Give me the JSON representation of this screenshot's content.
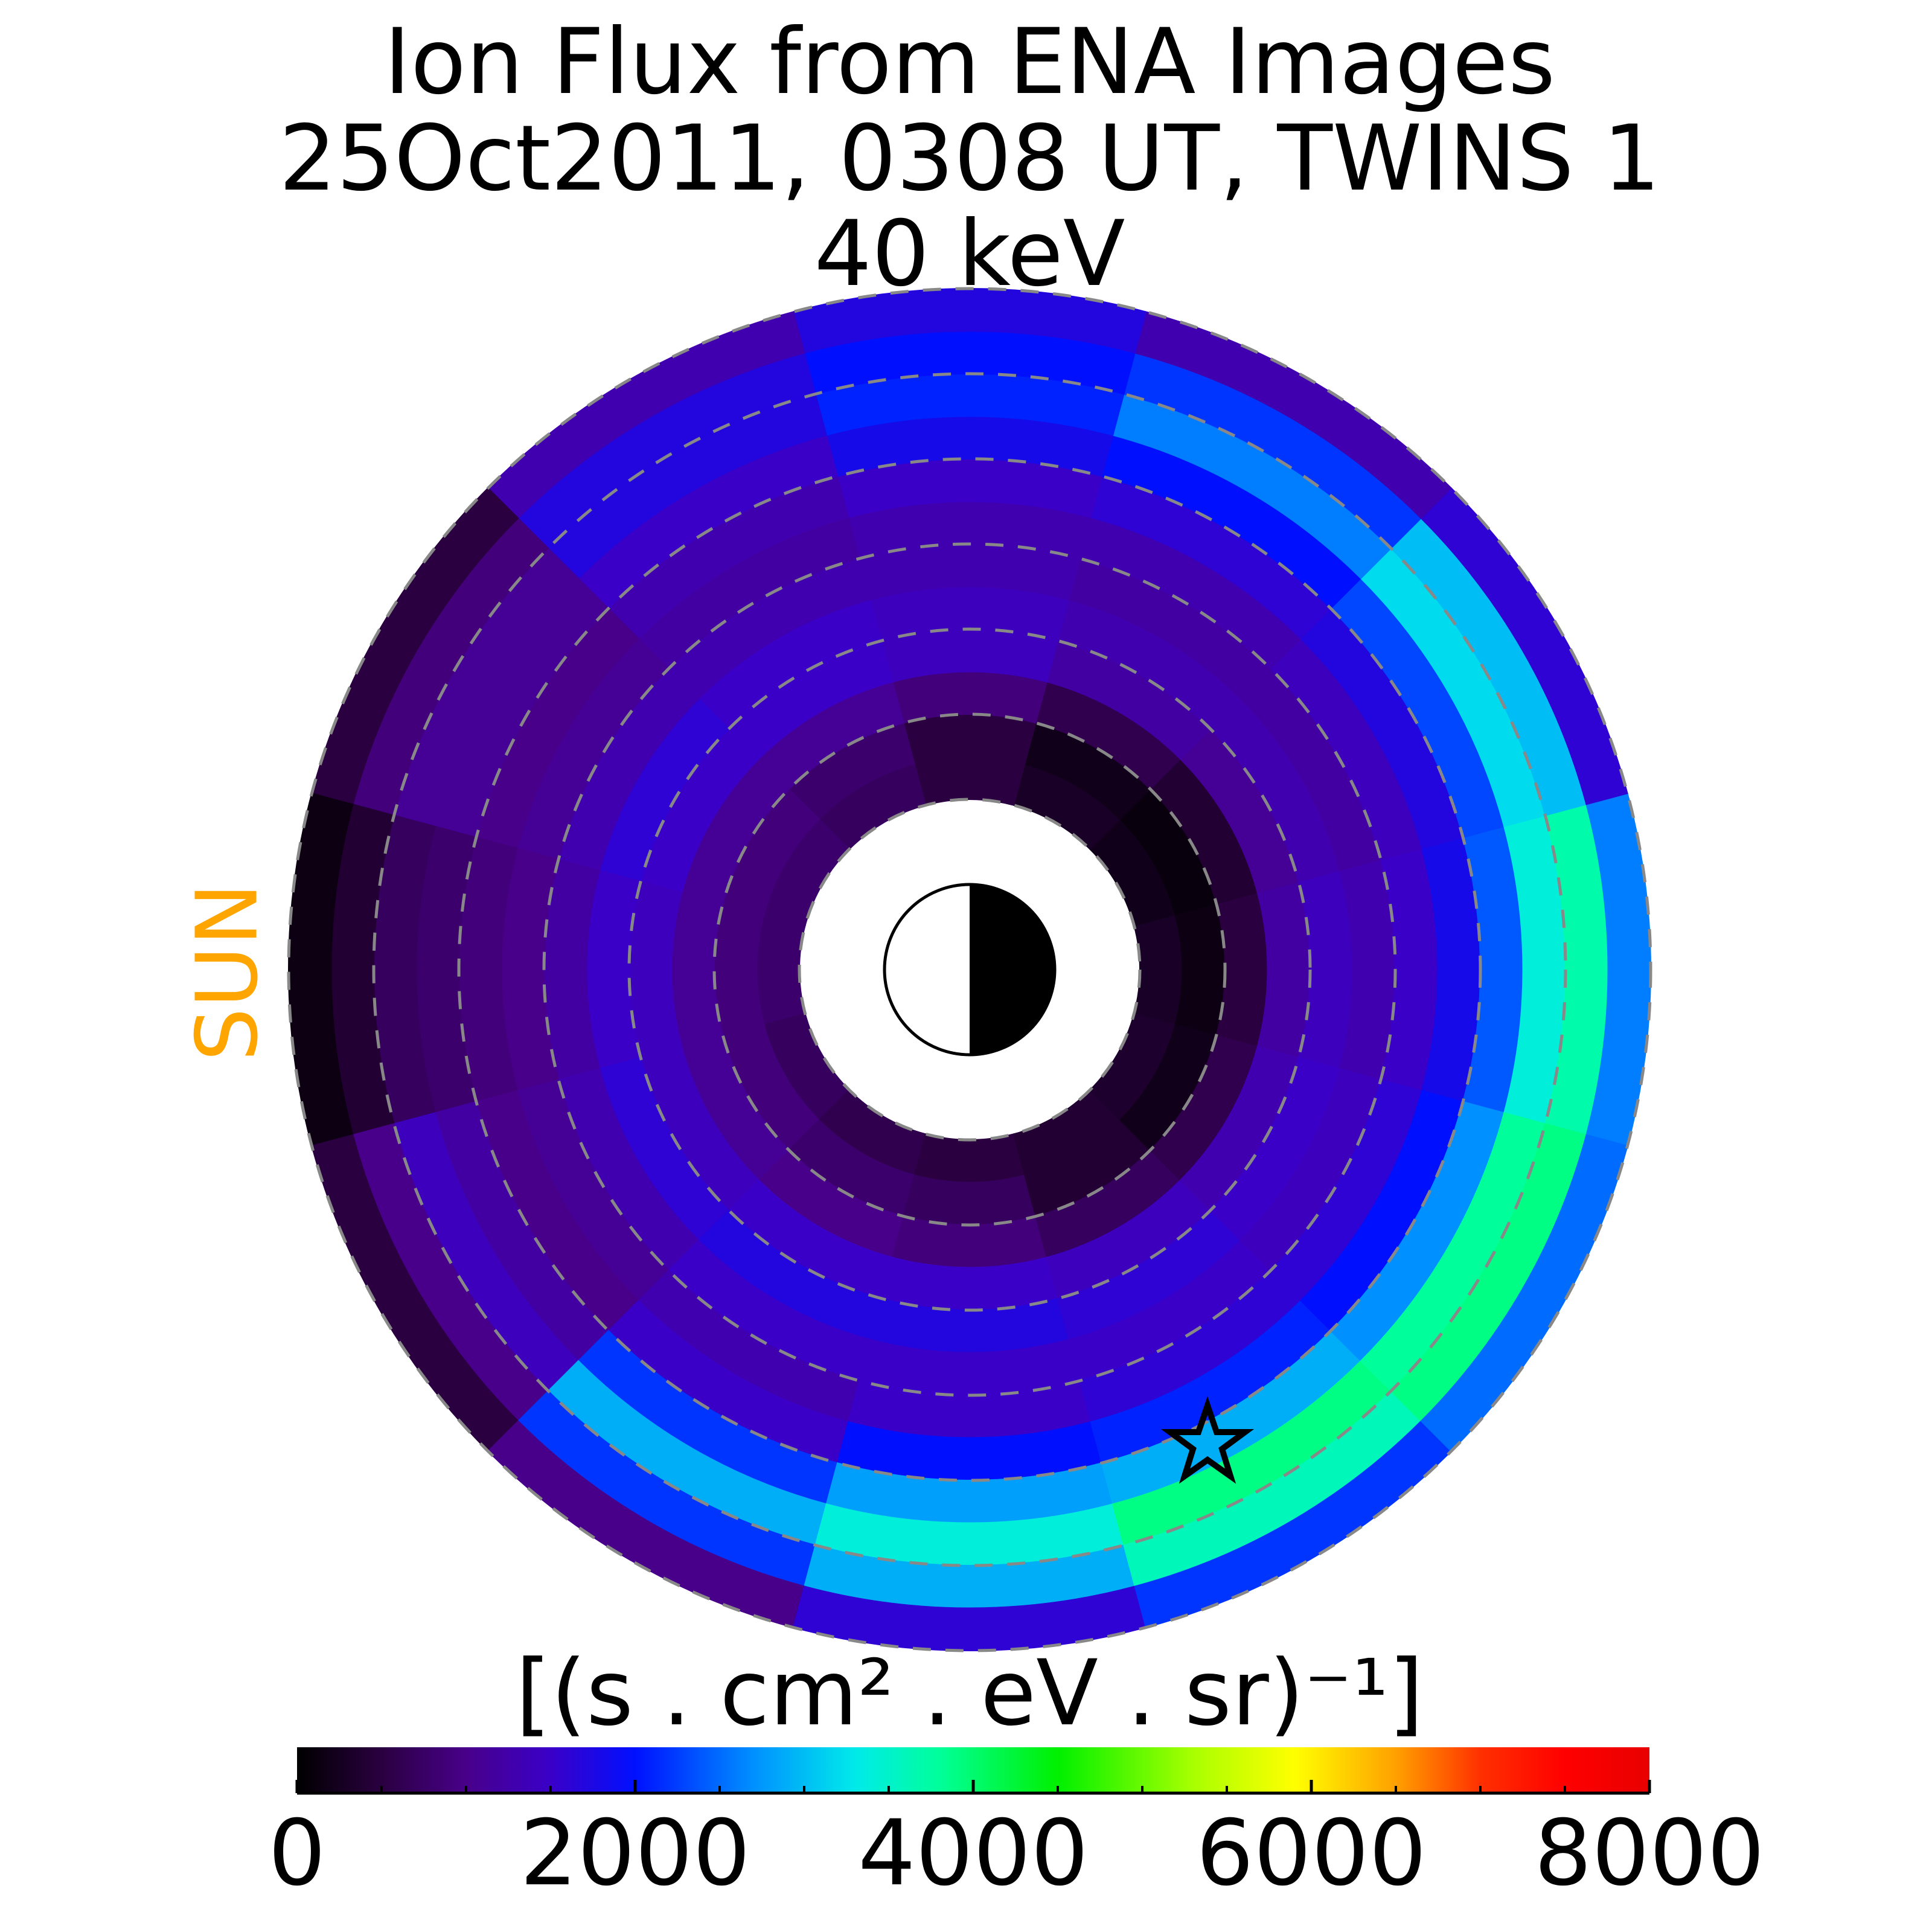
{
  "chart_data": {
    "type": "polar_heatmap",
    "title": [
      "Ion Flux from  ENA Images",
      "25Oct2011, 0308 UT,  TWINS 1",
      "40 keV"
    ],
    "sun_label": "SUN",
    "colorbar_label": "[(s . cm² . eV . sr)⁻¹]",
    "r_edges": [
      2,
      2.5,
      3,
      3.5,
      4,
      4.5,
      5,
      5.5,
      6,
      6.5,
      7,
      7.5,
      8
    ],
    "mlt_edges": [
      -1,
      1,
      3,
      5,
      7,
      9,
      11,
      13,
      15,
      17,
      19,
      21,
      23
    ],
    "flux": [
      [
        300,
        200,
        300,
        500,
        700,
        800,
        800,
        700,
        600,
        500,
        400,
        350
      ],
      [
        150,
        100,
        200,
        500,
        800,
        900,
        900,
        900,
        800,
        700,
        400,
        200
      ],
      [
        500,
        400,
        600,
        900,
        1100,
        1100,
        1100,
        1100,
        1000,
        900,
        700,
        600
      ],
      [
        1200,
        1100,
        1200,
        1400,
        1500,
        1500,
        1400,
        1400,
        1500,
        1500,
        1400,
        1300
      ],
      [
        1400,
        1300,
        1300,
        1400,
        1500,
        1600,
        1500,
        1600,
        1700,
        1700,
        1600,
        1500
      ],
      [
        1300,
        1200,
        1200,
        1300,
        1300,
        1300,
        1200,
        1300,
        1500,
        1500,
        1500,
        1400
      ],
      [
        1500,
        1400,
        1300,
        1300,
        1200,
        1100,
        1000,
        1100,
        1300,
        1500,
        1600,
        1600
      ],
      [
        1800,
        1700,
        1600,
        1500,
        1300,
        1000,
        900,
        1000,
        1500,
        2000,
        2100,
        2000
      ],
      [
        2400,
        2300,
        2000,
        1800,
        1500,
        1100,
        800,
        1200,
        2200,
        2800,
        2900,
        2700
      ],
      [
        3400,
        3200,
        2600,
        2100,
        1700,
        1100,
        700,
        1400,
        2900,
        3400,
        3900,
        3800
      ],
      [
        3700,
        3000,
        2200,
        2000,
        1700,
        900,
        400,
        1000,
        2200,
        2900,
        3600,
        3900
      ],
      [
        2600,
        1600,
        1300,
        1700,
        1300,
        500,
        150,
        500,
        1000,
        1600,
        2200,
        2500
      ]
    ],
    "rgrid": [
      2,
      3,
      4,
      5,
      6,
      7,
      8
    ],
    "clim": [
      0,
      8000
    ],
    "cticks": [
      0,
      2000,
      4000,
      6000,
      8000
    ],
    "cminorticks": [
      500,
      1000,
      1500,
      2500,
      3000,
      3500,
      4500,
      5000,
      5500,
      6500,
      7000,
      7500
    ],
    "colormap": [
      {
        "value": 0,
        "color": "#000000"
      },
      {
        "value": 500,
        "color": "#2a0040"
      },
      {
        "value": 1000,
        "color": "#48008a"
      },
      {
        "value": 1500,
        "color": "#3a00c8"
      },
      {
        "value": 2000,
        "color": "#0010ff"
      },
      {
        "value": 2700,
        "color": "#0090ff"
      },
      {
        "value": 3300,
        "color": "#00eaea"
      },
      {
        "value": 3800,
        "color": "#00ff9a"
      },
      {
        "value": 4500,
        "color": "#00f000"
      },
      {
        "value": 5300,
        "color": "#a8ff00"
      },
      {
        "value": 5900,
        "color": "#ffff00"
      },
      {
        "value": 6500,
        "color": "#ffa000"
      },
      {
        "value": 7000,
        "color": "#ff3000"
      },
      {
        "value": 7500,
        "color": "#ff0000"
      },
      {
        "value": 8000,
        "color": "#e80000"
      }
    ]
  }
}
